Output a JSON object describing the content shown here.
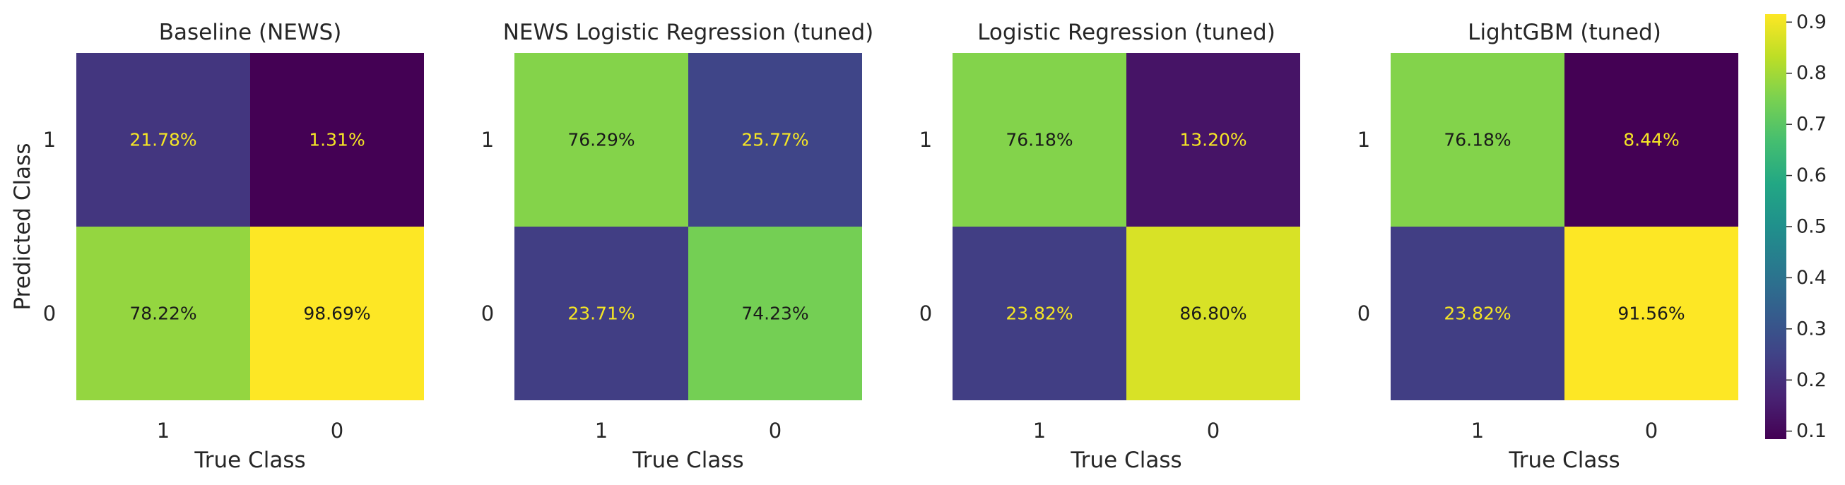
{
  "chart_data": [
    {
      "type": "heatmap",
      "title": "Baseline (NEWS)",
      "xlabel": "True Class",
      "ylabel": "Predicted Class",
      "x_categories": [
        "1",
        "0"
      ],
      "y_categories": [
        "1",
        "0"
      ],
      "values": [
        [
          0.2178,
          0.0131
        ],
        [
          0.7822,
          0.9869
        ]
      ],
      "labels": [
        [
          "21.78%",
          "1.31%"
        ],
        [
          "78.22%",
          "98.69%"
        ]
      ]
    },
    {
      "type": "heatmap",
      "title": "NEWS Logistic Regression (tuned)",
      "xlabel": "True Class",
      "ylabel": "",
      "x_categories": [
        "1",
        "0"
      ],
      "y_categories": [
        "1",
        "0"
      ],
      "values": [
        [
          0.7629,
          0.2577
        ],
        [
          0.2371,
          0.7423
        ]
      ],
      "labels": [
        [
          "76.29%",
          "25.77%"
        ],
        [
          "23.71%",
          "74.23%"
        ]
      ]
    },
    {
      "type": "heatmap",
      "title": "Logistic Regression (tuned)",
      "xlabel": "True Class",
      "ylabel": "",
      "x_categories": [
        "1",
        "0"
      ],
      "y_categories": [
        "1",
        "0"
      ],
      "values": [
        [
          0.7618,
          0.132
        ],
        [
          0.2382,
          0.868
        ]
      ],
      "labels": [
        [
          "76.18%",
          "13.20%"
        ],
        [
          "23.82%",
          "86.80%"
        ]
      ]
    },
    {
      "type": "heatmap",
      "title": "LightGBM (tuned)",
      "xlabel": "True Class",
      "ylabel": "",
      "x_categories": [
        "1",
        "0"
      ],
      "y_categories": [
        "1",
        "0"
      ],
      "values": [
        [
          0.7618,
          0.0844
        ],
        [
          0.2382,
          0.9156
        ]
      ],
      "labels": [
        [
          "76.18%",
          "8.44%"
        ],
        [
          "23.82%",
          "91.56%"
        ]
      ]
    }
  ],
  "colorbar": {
    "colormap": "viridis",
    "range": [
      0.0844,
      0.9156
    ],
    "ticks": [
      "0.1",
      "0.2",
      "0.3",
      "0.4",
      "0.5",
      "0.6",
      "0.7",
      "0.8",
      "0.9"
    ],
    "tick_values": [
      0.1,
      0.2,
      0.3,
      0.4,
      0.5,
      0.6,
      0.7,
      0.8,
      0.9
    ]
  },
  "colors": {
    "text_on_dark": "#f5e625",
    "text_on_light": "#1a1a1a",
    "axis_text": "#262626"
  }
}
